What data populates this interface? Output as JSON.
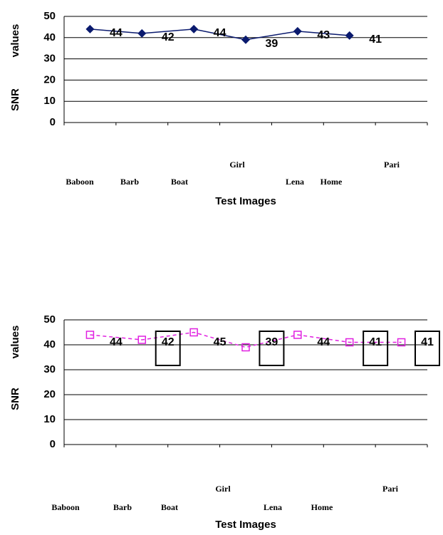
{
  "chart_data": [
    {
      "type": "line",
      "categories": [
        "Baboon",
        "Barb",
        "Boat",
        "Girl",
        "Lena",
        "Home",
        "Pari"
      ],
      "values": [
        44,
        42,
        44,
        39,
        43,
        41,
        null
      ],
      "color": "#0a1a6e",
      "marker": "diamond",
      "ylim": [
        0,
        50
      ],
      "yticks": [
        0,
        10,
        20,
        30,
        40,
        50
      ],
      "grid": true,
      "xlabel": "Test Images",
      "ylabel": [
        "SNR",
        "values"
      ]
    },
    {
      "type": "line",
      "categories": [
        "Baboon",
        "Barb",
        "Boat",
        "Girl",
        "Lena",
        "Home",
        "Pari"
      ],
      "values": [
        44,
        42,
        45,
        39,
        44,
        41,
        41
      ],
      "color": "#e020e0",
      "marker": "square",
      "ylim": [
        0,
        50
      ],
      "yticks": [
        0,
        10,
        20,
        30,
        40,
        50
      ],
      "grid": true,
      "xlabel": "Test Images",
      "ylabel": [
        "SNR",
        "values"
      ]
    }
  ]
}
